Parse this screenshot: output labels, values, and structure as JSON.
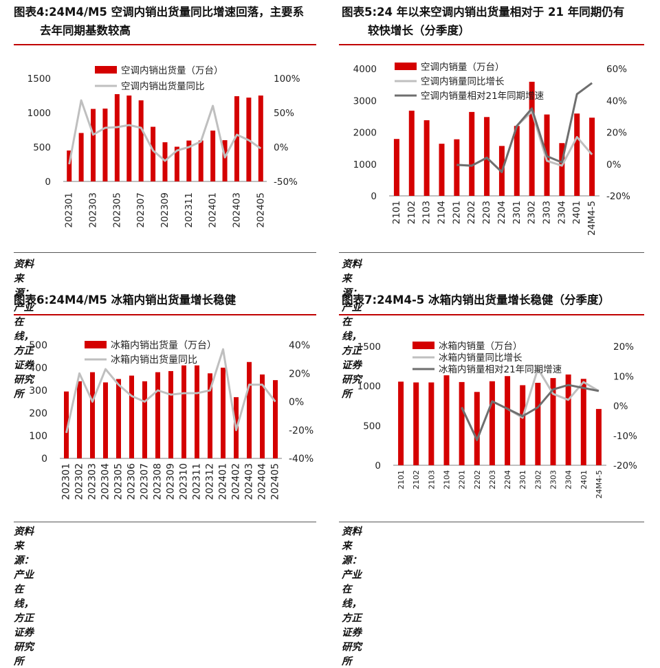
{
  "panels": [
    {
      "title_line1": "图表4:24M4/M5 空调内销出货量同比增速回落，主要系",
      "title_line2": "去年同期基数较高",
      "source": "资料来源：产业在线，方正证券研究所"
    },
    {
      "title_line1": "图表5:24 年以来空调内销出货量相对于 21 年同期仍有",
      "title_line2": "较快增长（分季度）",
      "source": "资料来源：产业在线，方正证券研究所"
    },
    {
      "title_line1": "图表6:24M4/M5 冰箱内销出货量增长稳健",
      "title_line2": "",
      "source": "资料来源：产业在线，方正证券研究所"
    },
    {
      "title_line1": "图表7:24M4-5 冰箱内销出货量增长稳健（分季度）",
      "title_line2": "",
      "source": "资料来源：产业在线，方正证券研究所"
    }
  ],
  "colors": {
    "bar": "#d40000",
    "line_light": "#bfbfbf",
    "line_dark": "#6e6e6e",
    "rule": "#c00000"
  },
  "chart_data": [
    {
      "type": "bar",
      "categories": [
        "202301",
        "202302",
        "202303",
        "202304",
        "202305",
        "202306",
        "202307",
        "202308",
        "202309",
        "202310",
        "202311",
        "202312",
        "202401",
        "202402",
        "202403",
        "202404",
        "202405"
      ],
      "tick_labels": [
        "202301",
        "",
        "202303",
        "",
        "202305",
        "",
        "202307",
        "",
        "202309",
        "",
        "202311",
        "",
        "202401",
        "",
        "202403",
        "",
        "202405"
      ],
      "series": [
        {
          "name": "空调内销出货量（万台）",
          "kind": "bar",
          "axis": "left",
          "values": [
            450,
            705,
            1055,
            1060,
            1270,
            1250,
            1180,
            795,
            570,
            505,
            595,
            595,
            740,
            600,
            1240,
            1220,
            1250
          ]
        },
        {
          "name": "空调内销出货量同比",
          "kind": "line",
          "axis": "right",
          "color": "light",
          "values": [
            -25,
            68,
            18,
            28,
            29,
            32,
            28,
            -5,
            -20,
            -5,
            0,
            8,
            60,
            -15,
            18,
            10,
            -2
          ]
        }
      ],
      "left_axis": {
        "min": 0,
        "max": 1500,
        "ticks": [
          0,
          500,
          1000,
          1500
        ],
        "labels": [
          "0",
          "500",
          "1000",
          "1500"
        ]
      },
      "right_axis": {
        "min": -50,
        "max": 100,
        "ticks": [
          -50,
          0,
          50,
          100
        ],
        "labels": [
          "-50%",
          "0%",
          "50%",
          "100%"
        ]
      },
      "legend": "top-left"
    },
    {
      "type": "bar",
      "categories": [
        "2101",
        "2102",
        "2103",
        "2104",
        "2201",
        "2202",
        "2203",
        "2204",
        "2301",
        "2302",
        "2303",
        "2304",
        "2401",
        "24M4-5"
      ],
      "tick_labels": [
        "2101",
        "2102",
        "2103",
        "2104",
        "2201",
        "2202",
        "2203",
        "2204",
        "2301",
        "2302",
        "2303",
        "2304",
        "2401",
        "24M4-5"
      ],
      "series": [
        {
          "name": "空调内销量（万台）",
          "kind": "bar",
          "axis": "left",
          "values": [
            1790,
            2680,
            2380,
            1640,
            1780,
            2640,
            2480,
            1570,
            2200,
            3590,
            2560,
            1660,
            2590,
            2460
          ]
        },
        {
          "name": "空调内销量同比增长",
          "kind": "line",
          "axis": "right",
          "color": "light",
          "values": [
            null,
            null,
            null,
            null,
            -0.5,
            -1,
            4,
            -5,
            24,
            33,
            2,
            -1,
            17,
            6
          ]
        },
        {
          "name": "空调内销量相对21年同期增速",
          "kind": "line",
          "axis": "right",
          "color": "dark",
          "values": [
            null,
            null,
            null,
            null,
            -0.5,
            -1,
            4,
            -5,
            24,
            35,
            5,
            1,
            44,
            51
          ]
        }
      ],
      "left_axis": {
        "min": 0,
        "max": 4000,
        "ticks": [
          0,
          1000,
          2000,
          3000,
          4000
        ],
        "labels": [
          "0",
          "1000",
          "2000",
          "3000",
          "4000"
        ]
      },
      "right_axis": {
        "min": -20,
        "max": 60,
        "ticks": [
          -20,
          0,
          20,
          40,
          60
        ],
        "labels": [
          "-20%",
          "0%",
          "20%",
          "40%",
          "60%"
        ]
      },
      "legend": "top-left"
    },
    {
      "type": "bar",
      "categories": [
        "202301",
        "202302",
        "202303",
        "202304",
        "202305",
        "202306",
        "202307",
        "202308",
        "202309",
        "202310",
        "202311",
        "202312",
        "202401",
        "202402",
        "202403",
        "202404",
        "202405"
      ],
      "tick_labels": [
        "202301",
        "202302",
        "202303",
        "202304",
        "202305",
        "202306",
        "202307",
        "202308",
        "202309",
        "202310",
        "202311",
        "202312",
        "202401",
        "202402",
        "202403",
        "202404",
        "202405"
      ],
      "series": [
        {
          "name": "冰箱内销出货量（万台）",
          "kind": "bar",
          "axis": "left",
          "values": [
            295,
            340,
            380,
            335,
            350,
            365,
            340,
            380,
            385,
            410,
            410,
            375,
            400,
            270,
            425,
            370,
            345
          ]
        },
        {
          "name": "冰箱内销出货量同比",
          "kind": "line",
          "axis": "right",
          "color": "light",
          "values": [
            -22,
            20,
            0,
            23,
            12,
            4,
            0,
            8,
            5,
            6,
            6,
            8,
            37,
            -20,
            12,
            12,
            0
          ]
        }
      ],
      "left_axis": {
        "min": 0,
        "max": 500,
        "ticks": [
          0,
          100,
          200,
          300,
          400,
          500
        ],
        "labels": [
          "0",
          "100",
          "200",
          "300",
          "400",
          "500"
        ]
      },
      "right_axis": {
        "min": -40,
        "max": 40,
        "ticks": [
          -40,
          -20,
          0,
          20,
          40
        ],
        "labels": [
          "-40%",
          "-20%",
          "0%",
          "20%",
          "40%"
        ]
      },
      "legend": "top-left"
    },
    {
      "type": "bar",
      "categories": [
        "2101",
        "2102",
        "2103",
        "2104",
        "2201",
        "2202",
        "2203",
        "2204",
        "2301",
        "2302",
        "2303",
        "2304",
        "2401",
        "24M4-5"
      ],
      "tick_labels": [
        "2101",
        "2102",
        "2103",
        "2104",
        "2201",
        "2202",
        "2203",
        "2204",
        "2301",
        "2302",
        "2303",
        "2304",
        "2401",
        "24M4-5"
      ],
      "series": [
        {
          "name": "冰箱内销量（万台）",
          "kind": "bar",
          "axis": "left",
          "values": [
            1055,
            1045,
            1045,
            1135,
            1050,
            925,
            1060,
            1125,
            1010,
            1040,
            1100,
            1145,
            1090,
            710
          ]
        },
        {
          "name": "冰箱内销量同比增长",
          "kind": "line",
          "axis": "right",
          "color": "light",
          "values": [
            null,
            null,
            null,
            null,
            -0.5,
            -11.5,
            1.5,
            -1,
            -4,
            12.5,
            4,
            2,
            8,
            5
          ]
        },
        {
          "name": "冰箱内销量相对21年同期增速",
          "kind": "line",
          "axis": "right",
          "color": "dark",
          "values": [
            null,
            null,
            null,
            null,
            -0.5,
            -11.5,
            1.5,
            -1,
            -3.5,
            -0.5,
            5.5,
            7,
            6,
            5
          ]
        }
      ],
      "left_axis": {
        "min": 0,
        "max": 1500,
        "ticks": [
          0,
          500,
          1000,
          1500
        ],
        "labels": [
          "0",
          "500",
          "1000",
          "1500"
        ]
      },
      "right_axis": {
        "min": -20,
        "max": 20,
        "ticks": [
          -20,
          -10,
          0,
          10,
          20
        ],
        "labels": [
          "-20%",
          "-10%",
          "0%",
          "10%",
          "20%"
        ]
      },
      "legend": "top-left"
    }
  ]
}
